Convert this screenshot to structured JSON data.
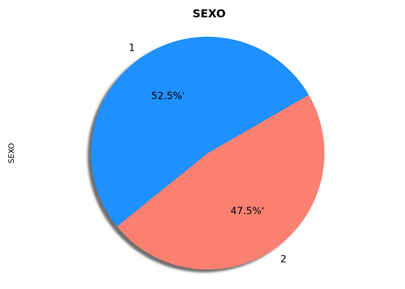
{
  "chart_data": {
    "type": "pie",
    "title": "SEXO",
    "ylabel": "SEXO",
    "categories": [
      "1",
      "2"
    ],
    "values": [
      52.5,
      47.5
    ],
    "pct_labels": [
      "52.5%'",
      "47.5%'"
    ],
    "colors": [
      "#1e90ff",
      "#fa8072"
    ],
    "shadow": true,
    "legend": "none"
  }
}
